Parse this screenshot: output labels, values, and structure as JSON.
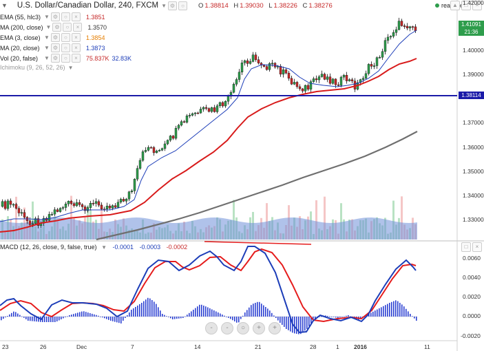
{
  "header": {
    "symbol": "U.S. Dollar/Canadian Dollar, 240, FXCM",
    "o_label": "O",
    "o_value": "1.38814",
    "h_label": "H",
    "h_value": "1.39030",
    "l_label": "L",
    "l_value": "1.38226",
    "c_label": "C",
    "c_value": "1.38276",
    "realtime": "realtime"
  },
  "studies": [
    {
      "name": "EMA (55, hlc3)",
      "value": "1.3851",
      "color": "#c62828"
    },
    {
      "name": "MA (200, close)",
      "value": "1.3570",
      "color": "#333333"
    },
    {
      "name": "EMA (3, close)",
      "value": "1.3854",
      "color": "#e67e00"
    },
    {
      "name": "MA (20, close)",
      "value": "1.3873",
      "color": "#1c3db8"
    },
    {
      "name": "Vol (20, false)",
      "value": "75.837K",
      "value2": "32.83K",
      "color": "#c62828"
    },
    {
      "name": "Ichimoku (9, 26, 52, 26)",
      "value": "",
      "color": "#999999"
    }
  ],
  "macd": {
    "name": "MACD (12, 26, close, 9, false, true)",
    "v1": "-0.0001",
    "v2": "-0.0003",
    "v3": "-0.0002"
  },
  "price_axis": [
    "1.42000",
    "1.40000",
    "1.39000",
    "1.37000",
    "1.36000",
    "1.35000",
    "1.34000",
    "1.33000"
  ],
  "macd_axis": [
    "0.0060",
    "0.0040",
    "0.0020",
    "0.0000",
    "-0.0020"
  ],
  "tags": {
    "price": "1.41091",
    "time": "21:36",
    "line": "1.38114"
  },
  "time_axis": [
    "23",
    "26",
    "Dec",
    "7",
    "14",
    "21",
    "28",
    "1",
    "2016",
    "11"
  ],
  "zoom_buttons": [
    "-",
    "-",
    "○",
    "+",
    "+"
  ],
  "colors": {
    "up": "#2e9d4c",
    "down": "#c62828",
    "hline": "#1a1aa8",
    "ma20": "#1c3db8",
    "ema55": "#d81b1b",
    "ma200": "#6f6f6f"
  }
}
